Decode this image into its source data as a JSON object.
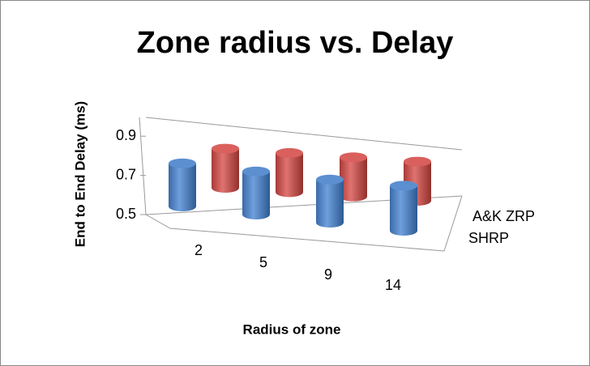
{
  "chart_data": {
    "type": "bar3d",
    "title": "Zone radius vs. Delay",
    "x_label": "Radius of zone",
    "y_label": "End to End Delay (ms)",
    "categories": [
      "2",
      "5",
      "9",
      "14"
    ],
    "series": [
      {
        "name": "A&K ZRP",
        "color": "#c0504d",
        "values": [
          0.7,
          0.7,
          0.7,
          0.7
        ]
      },
      {
        "name": "SHRP",
        "color": "#4f81bd",
        "values": [
          0.72,
          0.72,
          0.72,
          0.73
        ]
      }
    ],
    "ylim": [
      0.5,
      1.0
    ],
    "yticks": [
      0.5,
      0.7,
      0.9
    ]
  }
}
